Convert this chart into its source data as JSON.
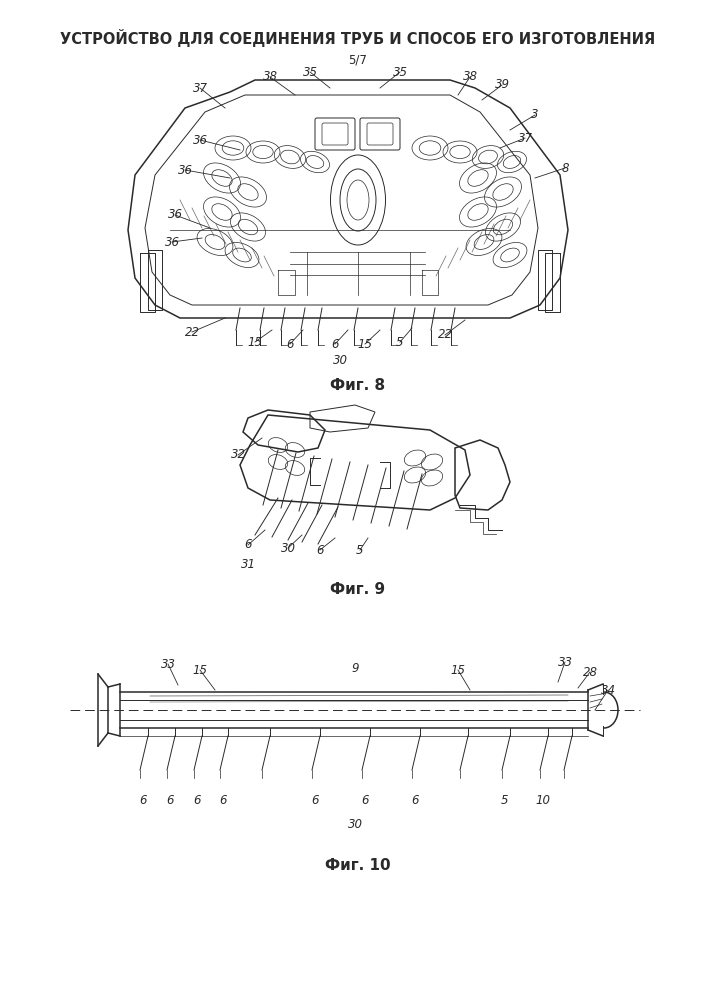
{
  "title": "УСТРОЙСТВО ДЛЯ СОЕДИНЕНИЯ ТРУБ И СПОСОБ ЕГО ИЗГОТОВЛЕНИЯ",
  "subtitle": "5/7",
  "fig8_label": "Фиг. 8",
  "fig9_label": "Фиг. 9",
  "fig10_label": "Фиг. 10",
  "bg_color": "#ffffff",
  "line_color": "#2a2a2a",
  "title_fontsize": 10.5,
  "subtitle_fontsize": 8.5,
  "fig_label_fontsize": 11,
  "annot_fontsize": 8.5
}
